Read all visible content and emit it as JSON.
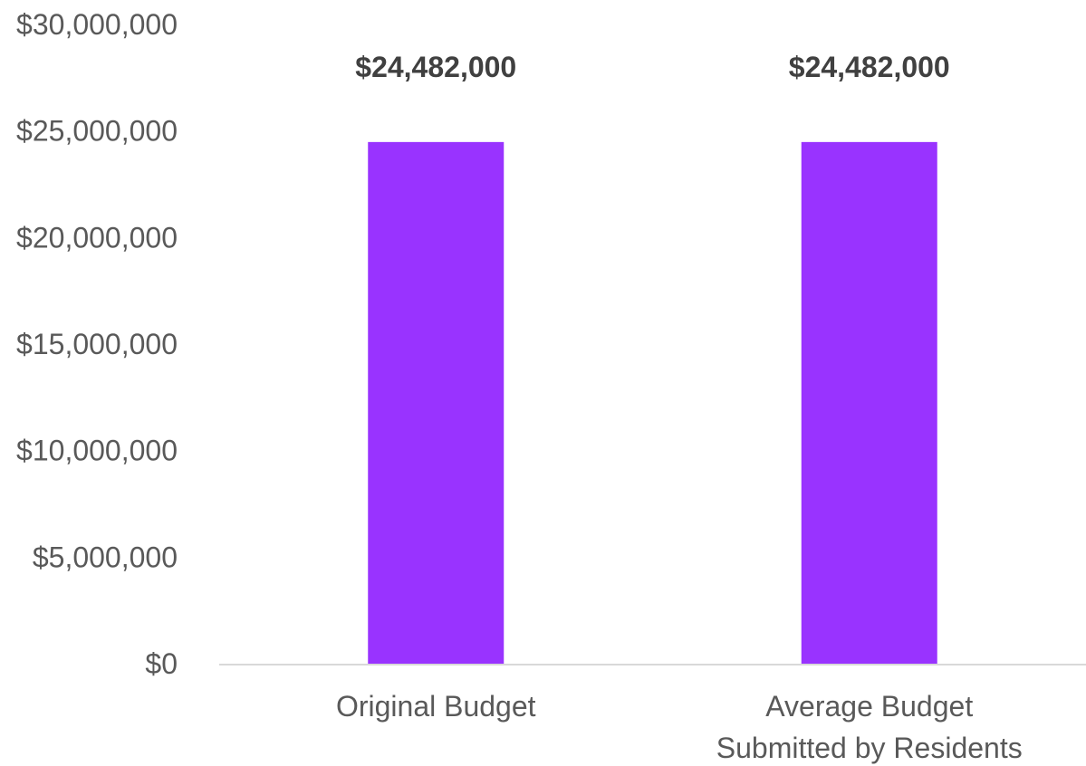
{
  "chart_data": {
    "type": "bar",
    "title": "",
    "xlabel": "",
    "ylabel": "",
    "categories": [
      "Original Budget",
      "Average Budget Submitted by Residents"
    ],
    "category_label_lines": [
      [
        "Original Budget"
      ],
      [
        "Average Budget",
        "Submitted by Residents"
      ]
    ],
    "values": [
      24482000,
      24482000
    ],
    "data_labels": [
      "$24,482,000",
      "$24,482,000"
    ],
    "ylim": [
      0,
      30000000
    ],
    "y_ticks": [
      0,
      5000000,
      10000000,
      15000000,
      20000000,
      25000000,
      30000000
    ],
    "y_tick_labels": [
      "$0",
      "$5,000,000",
      "$10,000,000",
      "$15,000,000",
      "$20,000,000",
      "$25,000,000",
      "$30,000,000"
    ],
    "grid": false,
    "legend": "none",
    "bar_color": "#9933FF",
    "axis_color": "#D9D9D9"
  }
}
